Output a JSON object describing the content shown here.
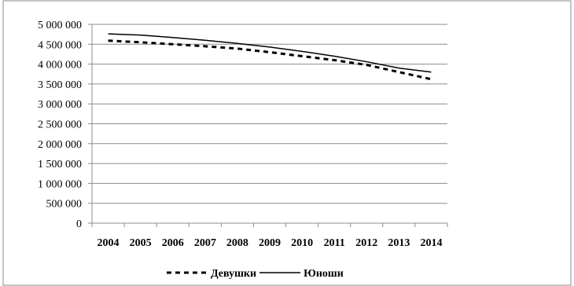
{
  "chart_data": {
    "type": "line",
    "x": [
      "2004",
      "2005",
      "2006",
      "2007",
      "2008",
      "2009",
      "2010",
      "2011",
      "2012",
      "2013",
      "2014"
    ],
    "ylim": [
      0,
      5000000
    ],
    "yticks": [
      0,
      500000,
      1000000,
      1500000,
      2000000,
      2500000,
      3000000,
      3500000,
      4000000,
      4500000,
      5000000
    ],
    "ytick_labels": [
      "0",
      "500 000",
      "1 000 000",
      "1 500 000",
      "2 000 000",
      "2 500 000",
      "3 000 000",
      "3 500 000",
      "4 000 000",
      "4 500 000",
      "5 000 000"
    ],
    "grid": "horizontal",
    "legend_position": "bottom",
    "series": [
      {
        "name": "Девушки",
        "style": "dashed",
        "color": "#000000",
        "values": [
          4590000,
          4550000,
          4500000,
          4450000,
          4390000,
          4300000,
          4200000,
          4100000,
          3980000,
          3800000,
          3620000
        ]
      },
      {
        "name": "Юноши",
        "style": "solid",
        "color": "#000000",
        "values": [
          4760000,
          4730000,
          4670000,
          4600000,
          4520000,
          4430000,
          4320000,
          4200000,
          4060000,
          3900000,
          3800000
        ]
      }
    ]
  }
}
